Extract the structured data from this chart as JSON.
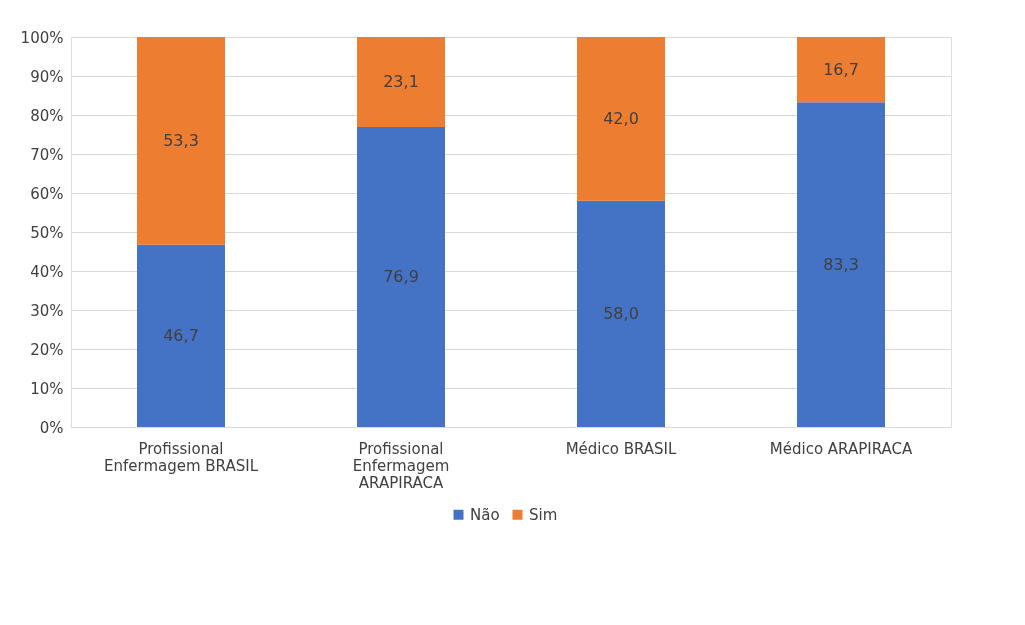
{
  "chart_data": {
    "type": "bar",
    "stacked": true,
    "categories": [
      "Profissional Enfermagem BRASIL",
      "Profissional Enfermagem ARAPIRACA",
      "Médico BRASIL",
      "Médico ARAPIRACA"
    ],
    "series": [
      {
        "name": "Não",
        "color": "#4472c4",
        "values": [
          46.7,
          76.9,
          58.0,
          83.3
        ],
        "value_labels": [
          "46,7",
          "76,9",
          "58,0",
          "83,3"
        ]
      },
      {
        "name": "Sim",
        "color": "#ed7d31",
        "values": [
          53.3,
          23.1,
          42.0,
          16.7
        ],
        "value_labels": [
          "53,3",
          "23,1",
          "42,0",
          "16,7"
        ]
      }
    ],
    "ylim": [
      0,
      100
    ],
    "yticks": [
      {
        "value": 0,
        "label": "0%"
      },
      {
        "value": 10,
        "label": "10%"
      },
      {
        "value": 20,
        "label": "20%"
      },
      {
        "value": 30,
        "label": "30%"
      },
      {
        "value": 40,
        "label": "40%"
      },
      {
        "value": 50,
        "label": "50%"
      },
      {
        "value": 60,
        "label": "60%"
      },
      {
        "value": 70,
        "label": "70%"
      },
      {
        "value": 80,
        "label": "80%"
      },
      {
        "value": 90,
        "label": "90%"
      },
      {
        "value": 100,
        "label": "100%"
      }
    ],
    "grid": "y",
    "legend": "bottom"
  }
}
